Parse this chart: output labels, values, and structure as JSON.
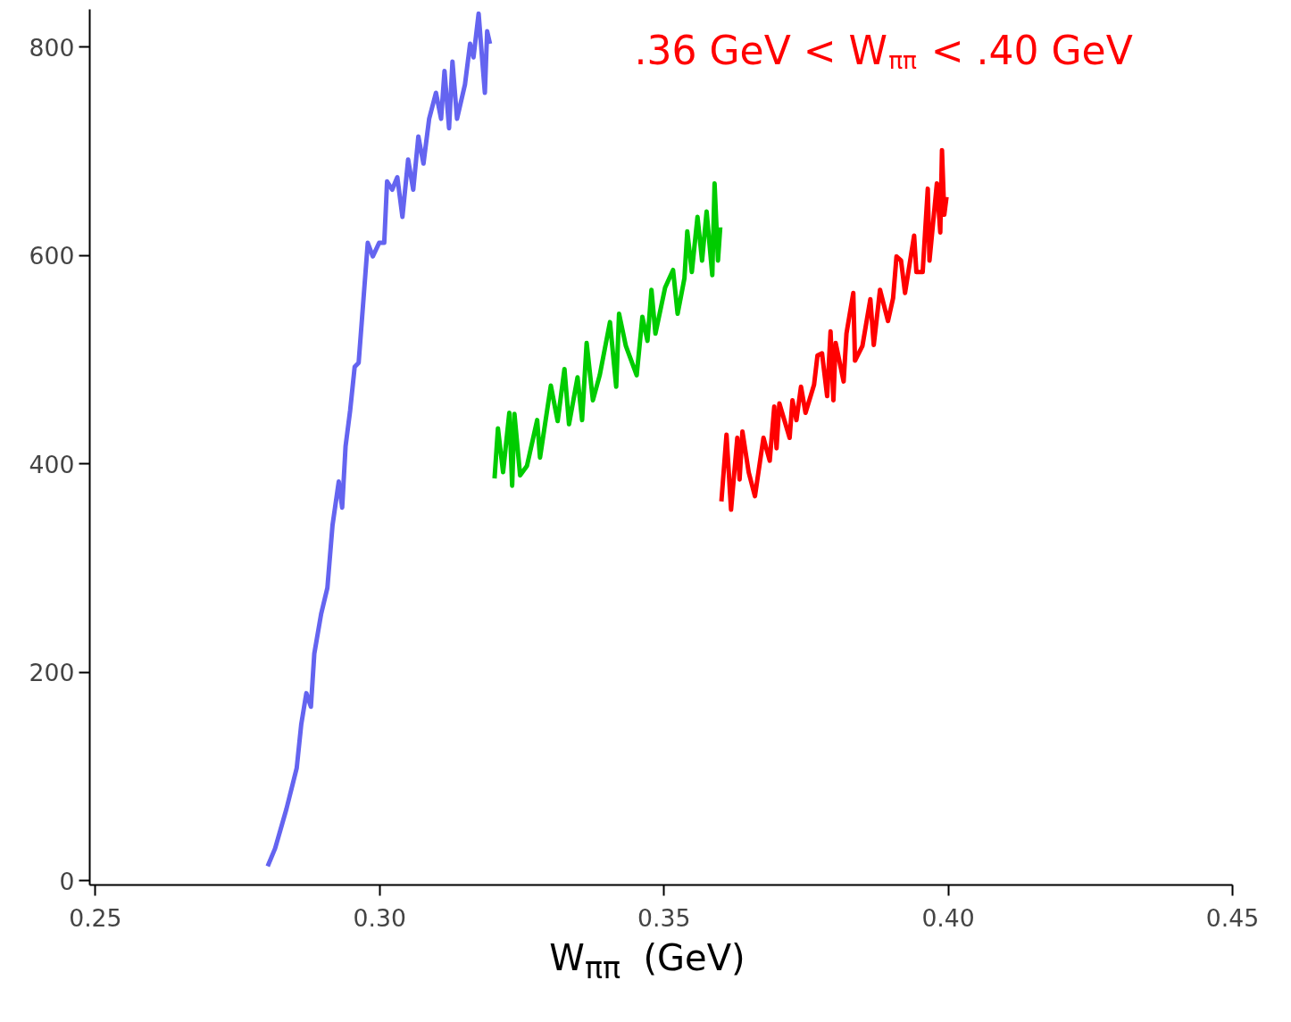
{
  "chart_data": {
    "type": "line",
    "xlabel": "W$_{ππ}$  (GeV)",
    "annotations": [
      ".36 GeV < W$_{ππ}$ < .40 GeV"
    ],
    "xlim": [
      0.249,
      0.45
    ],
    "ylim": [
      -4,
      836
    ],
    "xticks": [
      {
        "value": 0.25,
        "label": "0.25"
      },
      {
        "value": 0.3,
        "label": "0.30"
      },
      {
        "value": 0.35,
        "label": "0.35"
      },
      {
        "value": 0.4,
        "label": "0.40"
      },
      {
        "value": 0.45,
        "label": "0.45"
      }
    ],
    "yticks": [
      0,
      200,
      400,
      600,
      800
    ],
    "grid": false,
    "marker": "none",
    "line_style": "solid",
    "series": [
      {
        "color": "#6464f0",
        "x": [
          0.2803,
          0.2816,
          0.2825,
          0.2836,
          0.2848,
          0.2854,
          0.2862,
          0.2871,
          0.2879,
          0.2885,
          0.2897,
          0.2908,
          0.2917,
          0.2928,
          0.2934,
          0.294,
          0.2948,
          0.2956,
          0.2963,
          0.2979,
          0.2988,
          0.2999,
          0.3008,
          0.3013,
          0.3022,
          0.3031,
          0.304,
          0.305,
          0.3059,
          0.3068,
          0.3077,
          0.3087,
          0.3099,
          0.3108,
          0.3114,
          0.3122,
          0.3128,
          0.3136,
          0.315,
          0.3159,
          0.3165,
          0.3174,
          0.318,
          0.3185,
          0.3189,
          0.3194
        ],
        "values": [
          14,
          31,
          48,
          69,
          95,
          108,
          150,
          180,
          167,
          218,
          256,
          281,
          341,
          383,
          358,
          417,
          451,
          493,
          497,
          612,
          599,
          612,
          612,
          671,
          663,
          675,
          637,
          692,
          663,
          714,
          688,
          731,
          756,
          731,
          777,
          722,
          786,
          731,
          764,
          803,
          790,
          832,
          790,
          756,
          815,
          803
        ]
      },
      {
        "color": "#00cc00",
        "x": [
          0.3202,
          0.3208,
          0.3217,
          0.3228,
          0.3233,
          0.3237,
          0.3247,
          0.3259,
          0.3277,
          0.3282,
          0.3301,
          0.3313,
          0.3325,
          0.3333,
          0.3348,
          0.3356,
          0.3364,
          0.3375,
          0.3387,
          0.3405,
          0.3416,
          0.3421,
          0.3433,
          0.3452,
          0.3462,
          0.3471,
          0.3478,
          0.3485,
          0.3502,
          0.3516,
          0.3524,
          0.3536,
          0.3541,
          0.3549,
          0.3559,
          0.3567,
          0.3575,
          0.3585,
          0.3589,
          0.3595,
          0.3599
        ],
        "values": [
          386,
          434,
          392,
          449,
          379,
          448,
          389,
          398,
          442,
          406,
          475,
          441,
          491,
          438,
          483,
          442,
          516,
          461,
          485,
          536,
          474,
          544,
          513,
          485,
          541,
          518,
          567,
          525,
          569,
          586,
          544,
          578,
          623,
          584,
          637,
          595,
          642,
          581,
          669,
          595,
          627
        ]
      },
      {
        "color": "#ff0000",
        "x": [
          0.3601,
          0.361,
          0.3618,
          0.3629,
          0.3633,
          0.3638,
          0.3649,
          0.366,
          0.3675,
          0.3686,
          0.3694,
          0.3698,
          0.3703,
          0.3721,
          0.3726,
          0.3733,
          0.3741,
          0.3749,
          0.3764,
          0.377,
          0.3778,
          0.3787,
          0.3793,
          0.3798,
          0.3802,
          0.3816,
          0.3821,
          0.3833,
          0.3836,
          0.3849,
          0.3863,
          0.3869,
          0.388,
          0.3894,
          0.3903,
          0.3909,
          0.3917,
          0.3924,
          0.394,
          0.3944,
          0.3955,
          0.3964,
          0.3967,
          0.398,
          0.3986,
          0.3989,
          0.3993,
          0.3997
        ],
        "values": [
          364,
          428,
          356,
          425,
          385,
          431,
          392,
          369,
          425,
          403,
          455,
          415,
          458,
          425,
          461,
          442,
          474,
          449,
          476,
          504,
          506,
          465,
          527,
          461,
          516,
          479,
          525,
          564,
          499,
          513,
          558,
          514,
          567,
          537,
          559,
          599,
          595,
          564,
          619,
          584,
          584,
          664,
          595,
          669,
          622,
          701,
          639,
          656
        ]
      }
    ]
  }
}
